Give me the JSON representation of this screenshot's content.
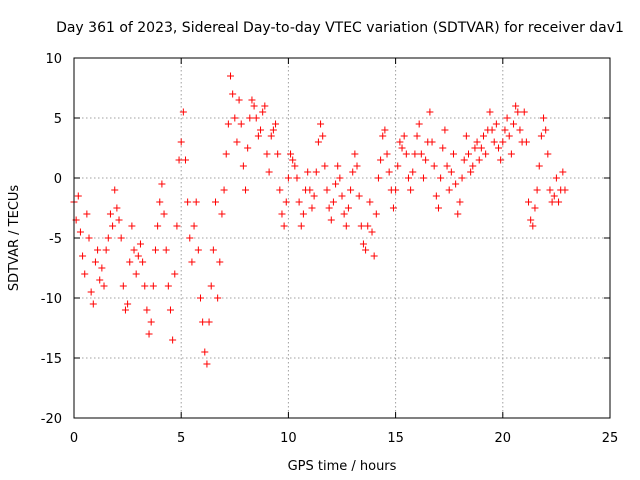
{
  "chart_data": {
    "type": "scatter",
    "title": "Day 361 of 2023, Sidereal Day-to-day VTEC variation (SDTVAR) for receiver dav1",
    "xlabel": "GPS time / hours",
    "ylabel": "SDTVAR / TECUs",
    "xlim": [
      0,
      25
    ],
    "ylim": [
      -20,
      10
    ],
    "xticks": [
      0,
      5,
      10,
      15,
      20,
      25
    ],
    "yticks": [
      -20,
      -15,
      -10,
      -5,
      0,
      5,
      10
    ],
    "xtick_labels": [
      "0",
      "5",
      "10",
      "15",
      "20",
      "25"
    ],
    "ytick_labels": [
      "-20",
      "-15",
      "-10",
      "-5",
      "0",
      "5",
      "10"
    ],
    "grid": true,
    "marker": "+",
    "series": [
      {
        "name": "SDTVAR",
        "color": "#ff0000",
        "points": [
          [
            0.0,
            -2.0
          ],
          [
            0.1,
            -3.5
          ],
          [
            0.2,
            -1.5
          ],
          [
            0.3,
            -4.5
          ],
          [
            0.4,
            -6.5
          ],
          [
            0.5,
            -8.0
          ],
          [
            0.6,
            -3.0
          ],
          [
            0.7,
            -5.0
          ],
          [
            0.8,
            -9.5
          ],
          [
            0.9,
            -10.5
          ],
          [
            1.0,
            -7.0
          ],
          [
            1.1,
            -6.0
          ],
          [
            1.2,
            -8.5
          ],
          [
            1.3,
            -7.5
          ],
          [
            1.4,
            -9.0
          ],
          [
            1.5,
            -6.0
          ],
          [
            1.6,
            -5.0
          ],
          [
            1.7,
            -3.0
          ],
          [
            1.8,
            -4.0
          ],
          [
            1.9,
            -1.0
          ],
          [
            2.0,
            -2.5
          ],
          [
            2.1,
            -3.5
          ],
          [
            2.2,
            -5.0
          ],
          [
            2.3,
            -9.0
          ],
          [
            2.4,
            -11.0
          ],
          [
            2.5,
            -10.5
          ],
          [
            2.6,
            -7.0
          ],
          [
            2.7,
            -4.0
          ],
          [
            2.8,
            -6.0
          ],
          [
            2.9,
            -8.0
          ],
          [
            3.0,
            -6.5
          ],
          [
            3.1,
            -5.5
          ],
          [
            3.2,
            -7.0
          ],
          [
            3.3,
            -9.0
          ],
          [
            3.4,
            -11.0
          ],
          [
            3.5,
            -13.0
          ],
          [
            3.6,
            -12.0
          ],
          [
            3.7,
            -9.0
          ],
          [
            3.8,
            -6.0
          ],
          [
            3.9,
            -4.0
          ],
          [
            4.0,
            -2.0
          ],
          [
            4.1,
            -0.5
          ],
          [
            4.2,
            -3.0
          ],
          [
            4.3,
            -6.0
          ],
          [
            4.4,
            -9.0
          ],
          [
            4.5,
            -11.0
          ],
          [
            4.6,
            -13.5
          ],
          [
            4.7,
            -8.0
          ],
          [
            4.8,
            -4.0
          ],
          [
            4.9,
            1.5
          ],
          [
            5.0,
            3.0
          ],
          [
            5.1,
            5.5
          ],
          [
            5.2,
            1.5
          ],
          [
            5.3,
            -2.0
          ],
          [
            5.4,
            -5.0
          ],
          [
            5.5,
            -7.0
          ],
          [
            5.6,
            -4.0
          ],
          [
            5.7,
            -2.0
          ],
          [
            5.8,
            -6.0
          ],
          [
            5.9,
            -10.0
          ],
          [
            6.0,
            -12.0
          ],
          [
            6.1,
            -14.5
          ],
          [
            6.2,
            -15.5
          ],
          [
            6.3,
            -12.0
          ],
          [
            6.4,
            -9.0
          ],
          [
            6.5,
            -6.0
          ],
          [
            6.6,
            -2.0
          ],
          [
            6.7,
            -10.0
          ],
          [
            6.8,
            -7.0
          ],
          [
            6.9,
            -3.0
          ],
          [
            7.0,
            -1.0
          ],
          [
            7.1,
            2.0
          ],
          [
            7.2,
            4.5
          ],
          [
            7.3,
            8.5
          ],
          [
            7.4,
            7.0
          ],
          [
            7.5,
            5.0
          ],
          [
            7.6,
            3.0
          ],
          [
            7.7,
            6.5
          ],
          [
            7.8,
            4.5
          ],
          [
            7.9,
            1.0
          ],
          [
            8.0,
            -1.0
          ],
          [
            8.1,
            2.5
          ],
          [
            8.2,
            5.0
          ],
          [
            8.3,
            6.5
          ],
          [
            8.4,
            6.0
          ],
          [
            8.5,
            5.0
          ],
          [
            8.6,
            3.5
          ],
          [
            8.7,
            4.0
          ],
          [
            8.8,
            5.5
          ],
          [
            8.9,
            6.0
          ],
          [
            9.0,
            2.0
          ],
          [
            9.1,
            0.5
          ],
          [
            9.2,
            3.5
          ],
          [
            9.3,
            4.0
          ],
          [
            9.4,
            4.5
          ],
          [
            9.5,
            2.0
          ],
          [
            9.6,
            -1.0
          ],
          [
            9.7,
            -3.0
          ],
          [
            9.8,
            -4.0
          ],
          [
            9.9,
            -2.0
          ],
          [
            10.0,
            0.0
          ],
          [
            10.1,
            2.0
          ],
          [
            10.2,
            1.5
          ],
          [
            10.3,
            1.0
          ],
          [
            10.4,
            0.0
          ],
          [
            10.5,
            -2.0
          ],
          [
            10.6,
            -4.0
          ],
          [
            10.7,
            -3.0
          ],
          [
            10.8,
            -1.0
          ],
          [
            10.9,
            0.5
          ],
          [
            11.0,
            -1.0
          ],
          [
            11.1,
            -2.5
          ],
          [
            11.2,
            -1.5
          ],
          [
            11.3,
            0.5
          ],
          [
            11.4,
            3.0
          ],
          [
            11.5,
            4.5
          ],
          [
            11.6,
            3.5
          ],
          [
            11.7,
            1.0
          ],
          [
            11.8,
            -1.0
          ],
          [
            11.9,
            -2.5
          ],
          [
            12.0,
            -3.5
          ],
          [
            12.1,
            -2.0
          ],
          [
            12.2,
            -0.5
          ],
          [
            12.3,
            1.0
          ],
          [
            12.4,
            0.0
          ],
          [
            12.5,
            -1.5
          ],
          [
            12.6,
            -3.0
          ],
          [
            12.7,
            -4.0
          ],
          [
            12.8,
            -2.5
          ],
          [
            12.9,
            -1.0
          ],
          [
            13.0,
            0.5
          ],
          [
            13.1,
            2.0
          ],
          [
            13.2,
            1.0
          ],
          [
            13.3,
            -1.5
          ],
          [
            13.4,
            -4.0
          ],
          [
            13.5,
            -5.5
          ],
          [
            13.6,
            -6.0
          ],
          [
            13.7,
            -4.0
          ],
          [
            13.8,
            -2.0
          ],
          [
            13.9,
            -4.5
          ],
          [
            14.0,
            -6.5
          ],
          [
            14.1,
            -3.0
          ],
          [
            14.2,
            0.0
          ],
          [
            14.3,
            1.5
          ],
          [
            14.4,
            3.5
          ],
          [
            14.5,
            4.0
          ],
          [
            14.6,
            2.0
          ],
          [
            14.7,
            0.5
          ],
          [
            14.8,
            -1.0
          ],
          [
            14.9,
            -2.5
          ],
          [
            15.0,
            -1.0
          ],
          [
            15.1,
            1.0
          ],
          [
            15.2,
            3.0
          ],
          [
            15.3,
            2.5
          ],
          [
            15.4,
            3.5
          ],
          [
            15.5,
            2.0
          ],
          [
            15.6,
            0.0
          ],
          [
            15.7,
            -1.0
          ],
          [
            15.8,
            0.5
          ],
          [
            15.9,
            2.0
          ],
          [
            16.0,
            3.5
          ],
          [
            16.1,
            4.5
          ],
          [
            16.2,
            2.0
          ],
          [
            16.3,
            0.0
          ],
          [
            16.4,
            1.5
          ],
          [
            16.5,
            3.0
          ],
          [
            16.6,
            5.5
          ],
          [
            16.7,
            3.0
          ],
          [
            16.8,
            1.0
          ],
          [
            16.9,
            -1.5
          ],
          [
            17.0,
            -2.5
          ],
          [
            17.1,
            0.0
          ],
          [
            17.2,
            2.5
          ],
          [
            17.3,
            4.0
          ],
          [
            17.4,
            1.0
          ],
          [
            17.5,
            -1.0
          ],
          [
            17.6,
            0.5
          ],
          [
            17.7,
            2.0
          ],
          [
            17.8,
            -0.5
          ],
          [
            17.9,
            -3.0
          ],
          [
            18.0,
            -2.0
          ],
          [
            18.1,
            0.0
          ],
          [
            18.2,
            1.5
          ],
          [
            18.3,
            3.5
          ],
          [
            18.4,
            2.0
          ],
          [
            18.5,
            0.5
          ],
          [
            18.6,
            1.0
          ],
          [
            18.7,
            2.5
          ],
          [
            18.8,
            3.0
          ],
          [
            18.9,
            1.5
          ],
          [
            19.0,
            2.5
          ],
          [
            19.1,
            3.5
          ],
          [
            19.2,
            2.0
          ],
          [
            19.3,
            4.0
          ],
          [
            19.4,
            5.5
          ],
          [
            19.5,
            4.0
          ],
          [
            19.6,
            3.0
          ],
          [
            19.7,
            4.5
          ],
          [
            19.8,
            2.5
          ],
          [
            19.9,
            1.5
          ],
          [
            20.0,
            3.0
          ],
          [
            20.1,
            4.0
          ],
          [
            20.2,
            5.0
          ],
          [
            20.3,
            3.5
          ],
          [
            20.4,
            2.0
          ],
          [
            20.5,
            4.5
          ],
          [
            20.6,
            6.0
          ],
          [
            20.7,
            5.5
          ],
          [
            20.8,
            4.0
          ],
          [
            20.9,
            3.0
          ],
          [
            21.0,
            5.5
          ],
          [
            21.1,
            3.0
          ],
          [
            21.2,
            -2.0
          ],
          [
            21.3,
            -3.5
          ],
          [
            21.4,
            -4.0
          ],
          [
            21.5,
            -2.5
          ],
          [
            21.6,
            -1.0
          ],
          [
            21.7,
            1.0
          ],
          [
            21.8,
            3.5
          ],
          [
            21.9,
            5.0
          ],
          [
            22.0,
            4.0
          ],
          [
            22.1,
            2.0
          ],
          [
            22.2,
            -1.0
          ],
          [
            22.3,
            -2.0
          ],
          [
            22.4,
            -1.5
          ],
          [
            22.5,
            0.0
          ],
          [
            22.6,
            -2.0
          ],
          [
            22.7,
            -1.0
          ],
          [
            22.8,
            0.5
          ],
          [
            22.9,
            -1.0
          ]
        ]
      }
    ]
  }
}
